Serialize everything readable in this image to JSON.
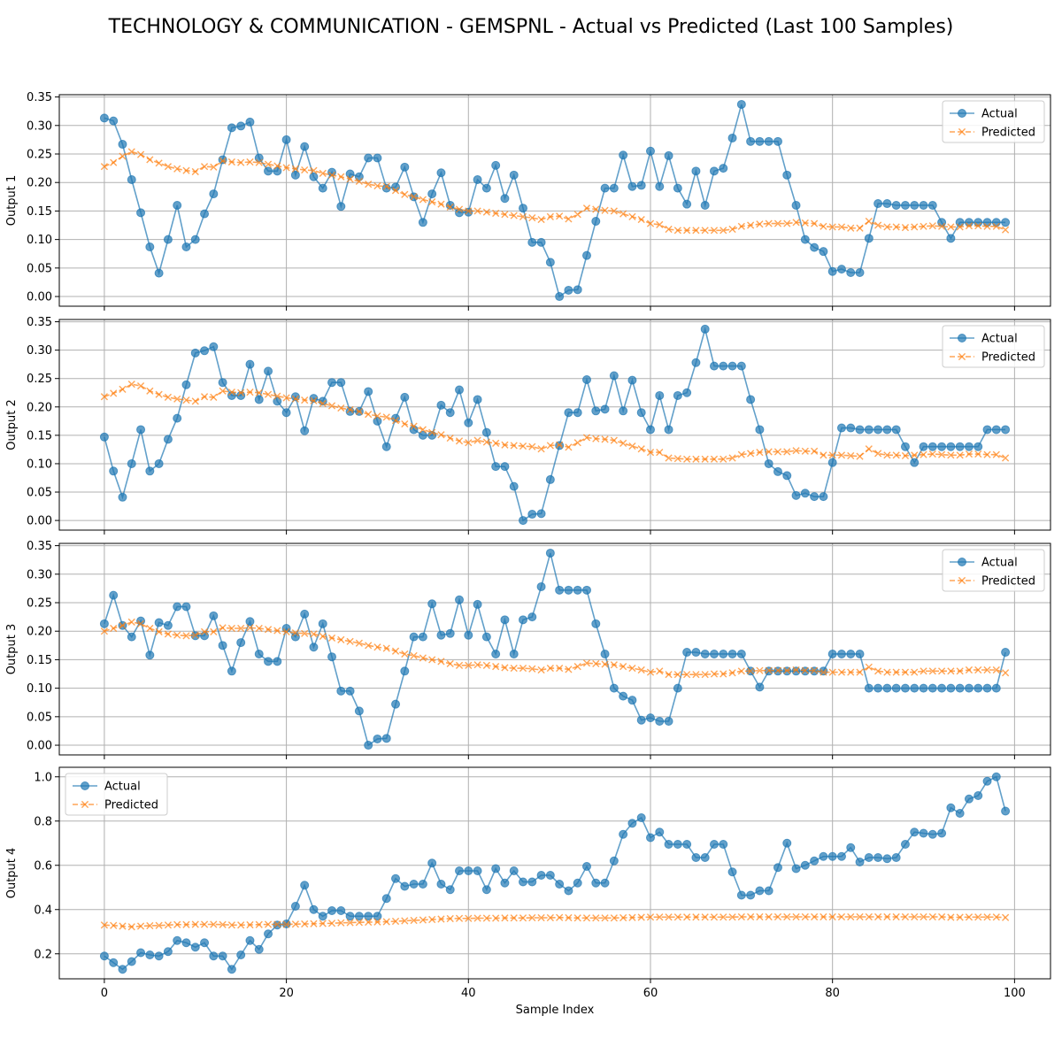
{
  "figure": {
    "title": "TECHNOLOGY & COMMUNICATION - GEMSPNL - Actual vs Predicted (Last 100 Samples)",
    "xlabel": "Sample Index"
  },
  "colors": {
    "actual": "#1f77b4",
    "predicted": "#ff7f0e",
    "grid": "#b0b0b0"
  },
  "chart_data": [
    {
      "type": "line",
      "ylabel": "Output 1",
      "xlim": [
        -4.95,
        103.95
      ],
      "ylim": [
        -0.017,
        0.354
      ],
      "yticks": [
        0.0,
        0.05,
        0.1,
        0.15,
        0.2,
        0.25,
        0.3,
        0.35
      ],
      "ytick_labels": [
        "0.00",
        "0.05",
        "0.10",
        "0.15",
        "0.20",
        "0.25",
        "0.30",
        "0.35"
      ],
      "xticks": [
        0,
        20,
        40,
        60,
        80,
        100
      ],
      "xtick_labels": [
        "0",
        "20",
        "40",
        "60",
        "80",
        "100"
      ],
      "show_xtick_labels": false,
      "grid": true,
      "legend": "upper right",
      "series": [
        {
          "name": "Actual",
          "style": "circle-solid",
          "values": [
            0.313,
            0.308,
            0.267,
            0.205,
            0.147,
            0.087,
            0.041,
            0.1,
            0.16,
            0.087,
            0.1,
            0.145,
            0.18,
            0.24,
            0.296,
            0.299,
            0.306,
            0.243,
            0.22,
            0.22,
            0.275,
            0.213,
            0.263,
            0.21,
            0.19,
            0.218,
            0.158,
            0.215,
            0.21,
            0.243,
            0.243,
            0.19,
            0.192,
            0.227,
            0.175,
            0.13,
            0.18,
            0.217,
            0.16,
            0.147,
            0.148,
            0.205,
            0.19,
            0.23,
            0.172,
            0.213,
            0.155,
            0.095,
            0.095,
            0.06,
            0.0,
            0.011,
            0.012,
            0.072,
            0.132,
            0.19,
            0.19,
            0.248,
            0.193,
            0.195,
            0.255,
            0.193,
            0.247,
            0.19,
            0.162,
            0.22,
            0.16,
            0.22,
            0.225,
            0.278,
            0.337,
            0.272,
            0.272,
            0.272,
            0.272,
            0.213,
            0.16,
            0.1,
            0.086,
            0.079,
            0.044,
            0.048,
            0.042,
            0.042,
            0.102,
            0.163,
            0.163,
            0.16,
            0.16,
            0.16,
            0.16,
            0.16,
            0.13,
            0.102,
            0.13,
            0.13,
            0.13,
            0.13,
            0.13,
            0.13
          ]
        },
        {
          "name": "Predicted",
          "style": "x-dashed",
          "values": [
            0.228,
            0.235,
            0.246,
            0.254,
            0.249,
            0.24,
            0.234,
            0.228,
            0.224,
            0.221,
            0.219,
            0.228,
            0.227,
            0.238,
            0.236,
            0.235,
            0.236,
            0.235,
            0.232,
            0.229,
            0.226,
            0.224,
            0.222,
            0.221,
            0.216,
            0.213,
            0.21,
            0.206,
            0.202,
            0.197,
            0.194,
            0.193,
            0.186,
            0.179,
            0.175,
            0.17,
            0.166,
            0.162,
            0.157,
            0.153,
            0.15,
            0.15,
            0.148,
            0.146,
            0.144,
            0.142,
            0.14,
            0.138,
            0.135,
            0.14,
            0.141,
            0.136,
            0.144,
            0.155,
            0.153,
            0.151,
            0.15,
            0.145,
            0.14,
            0.135,
            0.128,
            0.126,
            0.118,
            0.116,
            0.116,
            0.116,
            0.116,
            0.116,
            0.116,
            0.118,
            0.123,
            0.125,
            0.127,
            0.128,
            0.128,
            0.128,
            0.13,
            0.129,
            0.128,
            0.123,
            0.122,
            0.122,
            0.12,
            0.12,
            0.132,
            0.125,
            0.122,
            0.122,
            0.121,
            0.122,
            0.123,
            0.124,
            0.123,
            0.122,
            0.122,
            0.124,
            0.124,
            0.123,
            0.123,
            0.117
          ]
        }
      ]
    },
    {
      "type": "line",
      "ylabel": "Output 2",
      "xlim": [
        -4.95,
        103.95
      ],
      "ylim": [
        -0.017,
        0.354
      ],
      "yticks": [
        0.0,
        0.05,
        0.1,
        0.15,
        0.2,
        0.25,
        0.3,
        0.35
      ],
      "ytick_labels": [
        "0.00",
        "0.05",
        "0.10",
        "0.15",
        "0.20",
        "0.25",
        "0.30",
        "0.35"
      ],
      "xticks": [
        0,
        20,
        40,
        60,
        80,
        100
      ],
      "xtick_labels": [
        "0",
        "20",
        "40",
        "60",
        "80",
        "100"
      ],
      "show_xtick_labels": false,
      "grid": true,
      "legend": "upper right",
      "series": [
        {
          "name": "Actual",
          "style": "circle-solid",
          "values": [
            0.147,
            0.087,
            0.041,
            0.1,
            0.16,
            0.087,
            0.1,
            0.143,
            0.18,
            0.239,
            0.295,
            0.299,
            0.306,
            0.243,
            0.22,
            0.22,
            0.275,
            0.213,
            0.263,
            0.21,
            0.19,
            0.218,
            0.158,
            0.215,
            0.21,
            0.243,
            0.243,
            0.192,
            0.192,
            0.227,
            0.175,
            0.13,
            0.18,
            0.217,
            0.16,
            0.15,
            0.15,
            0.203,
            0.19,
            0.23,
            0.172,
            0.213,
            0.155,
            0.095,
            0.095,
            0.06,
            0.0,
            0.011,
            0.012,
            0.072,
            0.132,
            0.19,
            0.19,
            0.248,
            0.193,
            0.196,
            0.255,
            0.193,
            0.247,
            0.19,
            0.16,
            0.22,
            0.16,
            0.22,
            0.225,
            0.278,
            0.337,
            0.272,
            0.272,
            0.272,
            0.272,
            0.213,
            0.16,
            0.1,
            0.086,
            0.079,
            0.044,
            0.048,
            0.042,
            0.042,
            0.102,
            0.163,
            0.163,
            0.16,
            0.16,
            0.16,
            0.16,
            0.16,
            0.13,
            0.102,
            0.13,
            0.13,
            0.13,
            0.13,
            0.13,
            0.13,
            0.13,
            0.16,
            0.16,
            0.16
          ]
        },
        {
          "name": "Predicted",
          "style": "x-dashed",
          "values": [
            0.218,
            0.224,
            0.231,
            0.24,
            0.237,
            0.228,
            0.222,
            0.217,
            0.214,
            0.212,
            0.21,
            0.218,
            0.217,
            0.228,
            0.226,
            0.225,
            0.226,
            0.225,
            0.222,
            0.219,
            0.216,
            0.214,
            0.212,
            0.211,
            0.206,
            0.202,
            0.198,
            0.195,
            0.192,
            0.187,
            0.184,
            0.182,
            0.176,
            0.17,
            0.166,
            0.16,
            0.155,
            0.151,
            0.145,
            0.14,
            0.137,
            0.141,
            0.138,
            0.136,
            0.133,
            0.132,
            0.131,
            0.13,
            0.126,
            0.132,
            0.133,
            0.129,
            0.137,
            0.146,
            0.144,
            0.143,
            0.141,
            0.136,
            0.131,
            0.126,
            0.12,
            0.12,
            0.11,
            0.109,
            0.108,
            0.108,
            0.108,
            0.108,
            0.108,
            0.11,
            0.116,
            0.118,
            0.12,
            0.121,
            0.121,
            0.121,
            0.123,
            0.122,
            0.122,
            0.115,
            0.115,
            0.115,
            0.114,
            0.113,
            0.126,
            0.118,
            0.115,
            0.115,
            0.114,
            0.115,
            0.116,
            0.117,
            0.116,
            0.115,
            0.115,
            0.117,
            0.117,
            0.116,
            0.116,
            0.11
          ]
        }
      ]
    },
    {
      "type": "line",
      "ylabel": "Output 3",
      "xlim": [
        -4.95,
        103.95
      ],
      "ylim": [
        -0.017,
        0.354
      ],
      "yticks": [
        0.0,
        0.05,
        0.1,
        0.15,
        0.2,
        0.25,
        0.3,
        0.35
      ],
      "ytick_labels": [
        "0.00",
        "0.05",
        "0.10",
        "0.15",
        "0.20",
        "0.25",
        "0.30",
        "0.35"
      ],
      "xticks": [
        0,
        20,
        40,
        60,
        80,
        100
      ],
      "xtick_labels": [
        "0",
        "20",
        "40",
        "60",
        "80",
        "100"
      ],
      "show_xtick_labels": false,
      "grid": true,
      "legend": "upper right",
      "series": [
        {
          "name": "Actual",
          "style": "circle-solid",
          "values": [
            0.213,
            0.263,
            0.21,
            0.19,
            0.218,
            0.158,
            0.215,
            0.21,
            0.243,
            0.243,
            0.192,
            0.192,
            0.227,
            0.175,
            0.13,
            0.18,
            0.217,
            0.16,
            0.147,
            0.147,
            0.205,
            0.19,
            0.23,
            0.172,
            0.213,
            0.155,
            0.095,
            0.095,
            0.06,
            0.0,
            0.011,
            0.012,
            0.072,
            0.13,
            0.19,
            0.19,
            0.248,
            0.193,
            0.196,
            0.255,
            0.193,
            0.247,
            0.19,
            0.16,
            0.22,
            0.16,
            0.22,
            0.225,
            0.278,
            0.337,
            0.272,
            0.272,
            0.272,
            0.272,
            0.213,
            0.16,
            0.1,
            0.086,
            0.079,
            0.044,
            0.048,
            0.042,
            0.042,
            0.1,
            0.163,
            0.163,
            0.16,
            0.16,
            0.16,
            0.16,
            0.16,
            0.13,
            0.102,
            0.13,
            0.13,
            0.13,
            0.13,
            0.13,
            0.13,
            0.13,
            0.16,
            0.16,
            0.16,
            0.16,
            0.1,
            0.1,
            0.1,
            0.1,
            0.1,
            0.1,
            0.1,
            0.1,
            0.1,
            0.1,
            0.1,
            0.1,
            0.1,
            0.1,
            0.1,
            0.163
          ]
        },
        {
          "name": "Predicted",
          "style": "x-dashed",
          "values": [
            0.2,
            0.205,
            0.21,
            0.216,
            0.213,
            0.205,
            0.199,
            0.195,
            0.193,
            0.192,
            0.193,
            0.199,
            0.199,
            0.206,
            0.205,
            0.205,
            0.206,
            0.205,
            0.203,
            0.201,
            0.199,
            0.197,
            0.196,
            0.195,
            0.191,
            0.188,
            0.185,
            0.182,
            0.179,
            0.175,
            0.172,
            0.17,
            0.165,
            0.16,
            0.157,
            0.153,
            0.15,
            0.147,
            0.143,
            0.14,
            0.14,
            0.141,
            0.14,
            0.138,
            0.136,
            0.135,
            0.135,
            0.134,
            0.132,
            0.135,
            0.135,
            0.133,
            0.138,
            0.144,
            0.143,
            0.142,
            0.141,
            0.138,
            0.135,
            0.132,
            0.128,
            0.13,
            0.124,
            0.124,
            0.124,
            0.124,
            0.124,
            0.125,
            0.125,
            0.127,
            0.13,
            0.13,
            0.131,
            0.131,
            0.131,
            0.131,
            0.132,
            0.131,
            0.131,
            0.128,
            0.128,
            0.128,
            0.128,
            0.128,
            0.137,
            0.13,
            0.128,
            0.128,
            0.128,
            0.128,
            0.13,
            0.13,
            0.13,
            0.13,
            0.13,
            0.132,
            0.132,
            0.132,
            0.132,
            0.127
          ]
        }
      ]
    },
    {
      "type": "line",
      "ylabel": "Output 4",
      "xlim": [
        -4.95,
        103.95
      ],
      "ylim": [
        0.087,
        1.043
      ],
      "yticks": [
        0.2,
        0.4,
        0.6,
        0.8,
        1.0
      ],
      "ytick_labels": [
        "0.2",
        "0.4",
        "0.6",
        "0.8",
        "1.0"
      ],
      "xticks": [
        0,
        20,
        40,
        60,
        80,
        100
      ],
      "xtick_labels": [
        "0",
        "20",
        "40",
        "60",
        "80",
        "100"
      ],
      "show_xtick_labels": true,
      "grid": true,
      "legend": "upper left",
      "series": [
        {
          "name": "Actual",
          "style": "circle-solid",
          "values": [
            0.19,
            0.16,
            0.13,
            0.165,
            0.205,
            0.195,
            0.19,
            0.21,
            0.26,
            0.25,
            0.23,
            0.25,
            0.19,
            0.19,
            0.13,
            0.195,
            0.26,
            0.22,
            0.29,
            0.33,
            0.335,
            0.415,
            0.51,
            0.4,
            0.37,
            0.395,
            0.395,
            0.37,
            0.37,
            0.37,
            0.37,
            0.45,
            0.54,
            0.505,
            0.515,
            0.515,
            0.61,
            0.515,
            0.49,
            0.575,
            0.575,
            0.575,
            0.49,
            0.585,
            0.52,
            0.575,
            0.525,
            0.525,
            0.555,
            0.555,
            0.515,
            0.485,
            0.52,
            0.595,
            0.52,
            0.52,
            0.62,
            0.74,
            0.79,
            0.815,
            0.725,
            0.75,
            0.695,
            0.695,
            0.695,
            0.635,
            0.635,
            0.695,
            0.695,
            0.57,
            0.465,
            0.465,
            0.485,
            0.485,
            0.59,
            0.7,
            0.585,
            0.6,
            0.62,
            0.64,
            0.64,
            0.64,
            0.68,
            0.615,
            0.635,
            0.635,
            0.63,
            0.635,
            0.695,
            0.75,
            0.745,
            0.74,
            0.745,
            0.86,
            0.835,
            0.9,
            0.915,
            0.98,
            1.0,
            0.845
          ]
        },
        {
          "name": "Predicted",
          "style": "x-dashed",
          "values": [
            0.33,
            0.328,
            0.325,
            0.322,
            0.325,
            0.327,
            0.328,
            0.33,
            0.332,
            0.332,
            0.333,
            0.333,
            0.333,
            0.332,
            0.33,
            0.33,
            0.331,
            0.332,
            0.333,
            0.333,
            0.333,
            0.334,
            0.335,
            0.336,
            0.337,
            0.338,
            0.34,
            0.341,
            0.342,
            0.343,
            0.344,
            0.345,
            0.347,
            0.349,
            0.351,
            0.353,
            0.355,
            0.357,
            0.359,
            0.36,
            0.36,
            0.361,
            0.361,
            0.361,
            0.362,
            0.362,
            0.362,
            0.363,
            0.363,
            0.363,
            0.364,
            0.363,
            0.362,
            0.362,
            0.362,
            0.362,
            0.362,
            0.363,
            0.364,
            0.365,
            0.366,
            0.366,
            0.366,
            0.366,
            0.366,
            0.366,
            0.366,
            0.366,
            0.366,
            0.366,
            0.367,
            0.367,
            0.367,
            0.367,
            0.367,
            0.367,
            0.367,
            0.367,
            0.367,
            0.367,
            0.367,
            0.367,
            0.367,
            0.367,
            0.367,
            0.367,
            0.367,
            0.367,
            0.367,
            0.367,
            0.367,
            0.367,
            0.367,
            0.365,
            0.365,
            0.366,
            0.366,
            0.366,
            0.366,
            0.364
          ]
        }
      ]
    }
  ]
}
